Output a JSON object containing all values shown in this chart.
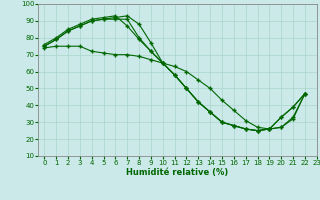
{
  "xlabel": "Humidité relative (%)",
  "background_color": "#cbe9e9",
  "grid_color": "#aad4cc",
  "line_color": "#006600",
  "xlim": [
    -0.5,
    23
  ],
  "ylim": [
    10,
    100
  ],
  "xticks": [
    0,
    1,
    2,
    3,
    4,
    5,
    6,
    7,
    8,
    9,
    10,
    11,
    12,
    13,
    14,
    15,
    16,
    17,
    18,
    19,
    20,
    21,
    22,
    23
  ],
  "yticks": [
    10,
    20,
    30,
    40,
    50,
    60,
    70,
    80,
    90,
    100
  ],
  "line1_x": [
    0,
    1,
    2,
    3,
    4,
    5,
    6,
    7,
    8,
    9,
    10,
    11,
    12,
    13,
    14,
    15,
    16,
    17,
    18,
    19,
    20,
    21,
    22
  ],
  "line1_y": [
    75,
    79,
    84,
    87,
    90,
    91,
    92,
    93,
    88,
    77,
    65,
    58,
    50,
    42,
    36,
    30,
    28,
    26,
    25,
    26,
    27,
    33,
    47
  ],
  "line2_x": [
    0,
    1,
    2,
    3,
    4,
    5,
    6,
    7,
    8,
    9,
    10,
    11,
    12,
    13,
    14,
    15,
    16,
    17,
    18,
    19,
    20,
    21,
    22
  ],
  "line2_y": [
    75,
    79,
    84,
    87,
    90,
    91,
    91,
    91,
    80,
    72,
    65,
    58,
    50,
    42,
    36,
    30,
    28,
    26,
    25,
    26,
    33,
    39,
    47
  ],
  "line3_x": [
    0,
    1,
    2,
    3,
    4,
    5,
    6,
    7,
    8,
    9,
    10,
    11,
    12,
    13,
    14,
    15,
    16,
    17,
    18,
    19,
    20,
    21,
    22
  ],
  "line3_y": [
    76,
    80,
    85,
    88,
    91,
    92,
    93,
    87,
    79,
    72,
    65,
    58,
    50,
    42,
    36,
    30,
    28,
    26,
    25,
    26,
    33,
    39,
    47
  ],
  "line4_x": [
    0,
    1,
    2,
    3,
    4,
    5,
    6,
    7,
    8,
    9,
    10,
    11,
    12,
    13,
    14,
    15,
    16,
    17,
    18,
    19,
    20,
    21,
    22
  ],
  "line4_y": [
    74,
    75,
    75,
    75,
    72,
    71,
    70,
    70,
    69,
    67,
    65,
    63,
    60,
    55,
    50,
    43,
    37,
    31,
    27,
    26,
    27,
    32,
    47
  ]
}
